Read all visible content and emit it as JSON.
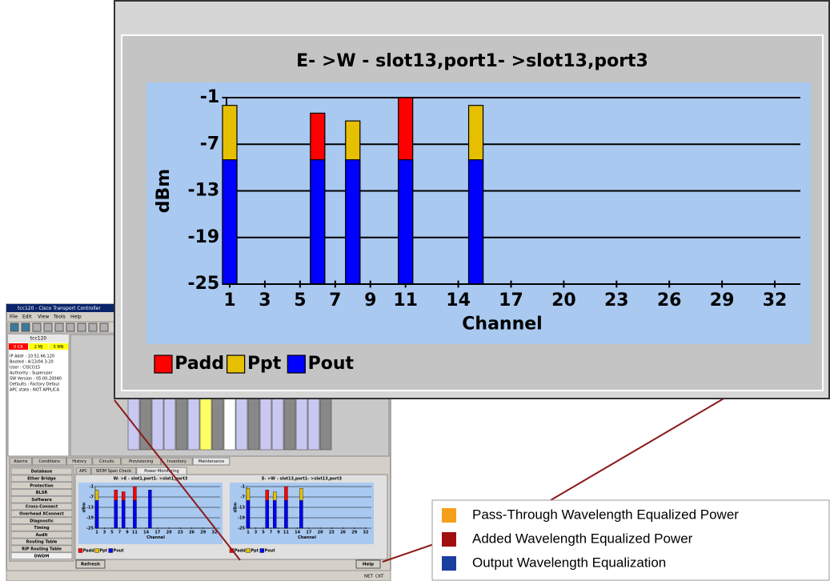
{
  "chart_data": [
    {
      "type": "bar",
      "title": "E- >W - slot13,port1- >slot13,port3",
      "x_label": "Channel",
      "y_label": "dBm",
      "x": [
        1,
        6,
        8,
        11,
        15
      ],
      "series": [
        {
          "name": "Padd",
          "color": "#ff0000",
          "values": [
            null,
            -3,
            null,
            -1,
            null
          ]
        },
        {
          "name": "Ppt",
          "color": "#e6c000",
          "values": [
            -2,
            null,
            -4,
            null,
            -2
          ]
        },
        {
          "name": "Pout",
          "color": "#0000ff",
          "values": [
            -9,
            -9,
            -9,
            -9,
            -9
          ]
        }
      ],
      "xlim": [
        1,
        32
      ],
      "xticks": [
        1,
        3,
        5,
        7,
        9,
        11,
        14,
        17,
        20,
        23,
        26,
        29,
        32
      ],
      "ylim": [
        -25,
        -1
      ],
      "yticks": [
        -1,
        -7,
        -13,
        -19,
        -25
      ],
      "grid": true,
      "legend": "bottom-left"
    },
    {
      "type": "bar",
      "title": "W- >E - slot1,port1- >slot1,port3",
      "x_label": "Channel",
      "y_label": "dBm",
      "x": [
        1,
        6,
        8,
        11,
        15
      ],
      "series": [
        {
          "name": "Padd",
          "color": "#ff0000",
          "values": [
            null,
            -3,
            -4,
            -1,
            null
          ]
        },
        {
          "name": "Ppt",
          "color": "#e6c000",
          "values": [
            -3,
            null,
            null,
            null,
            null
          ]
        },
        {
          "name": "Pout",
          "color": "#0000ff",
          "values": [
            -9,
            -9,
            -9,
            -9,
            -3
          ]
        }
      ],
      "xlim": [
        1,
        32
      ],
      "xticks": [
        1,
        3,
        5,
        7,
        9,
        11,
        14,
        17,
        20,
        23,
        26,
        29,
        32
      ],
      "ylim": [
        -25,
        -1
      ],
      "yticks": [
        -1,
        -7,
        -13,
        -19,
        -25
      ],
      "grid": true,
      "legend": "bottom-left"
    }
  ],
  "window": {
    "title": "tcc120 - Cisco Transport Controller",
    "menu": [
      "File",
      "Edit",
      "View",
      "Tools",
      "Help"
    ],
    "node": "tcc120",
    "alarms": [
      "0 CR",
      "2 MJ",
      "5 MN"
    ],
    "info": [
      "IP Addr : 10.51.66.120",
      "Booted : 4/13/04 3:20",
      "User : CISCO15",
      "Authority : Superuser",
      "SW Version : 05.00-20040",
      "Defaults : Factory Defaul",
      "APC state : NOT APPLICA"
    ],
    "tabs": [
      "Alarms",
      "Conditions",
      "History",
      "Circuits",
      "Provisioning",
      "Inventory",
      "Maintenance"
    ],
    "side_menu": [
      "Database",
      "Ether Bridge",
      "Protection",
      "BLSR",
      "Software",
      "Cross-Connect",
      "Overhead XConnect",
      "Diagnostic",
      "Timing",
      "Audit",
      "Routing Table",
      "RIP Routing Table",
      "DWDM"
    ],
    "subtabs": [
      "APC",
      "WDM Span Check",
      "Power Monitoring"
    ],
    "buttons": [
      "Refresh",
      "Help"
    ],
    "status": [
      "NET",
      "CKT"
    ]
  },
  "callout_legend": [
    {
      "label": "Pass-Through Wavelength Equalized Power",
      "color": "#f5a01a"
    },
    {
      "label": "Added Wavelength Equalized Power",
      "color": "#a01010"
    },
    {
      "label": "Output Wavelength Equalization",
      "color": "#1a3f9c"
    }
  ]
}
